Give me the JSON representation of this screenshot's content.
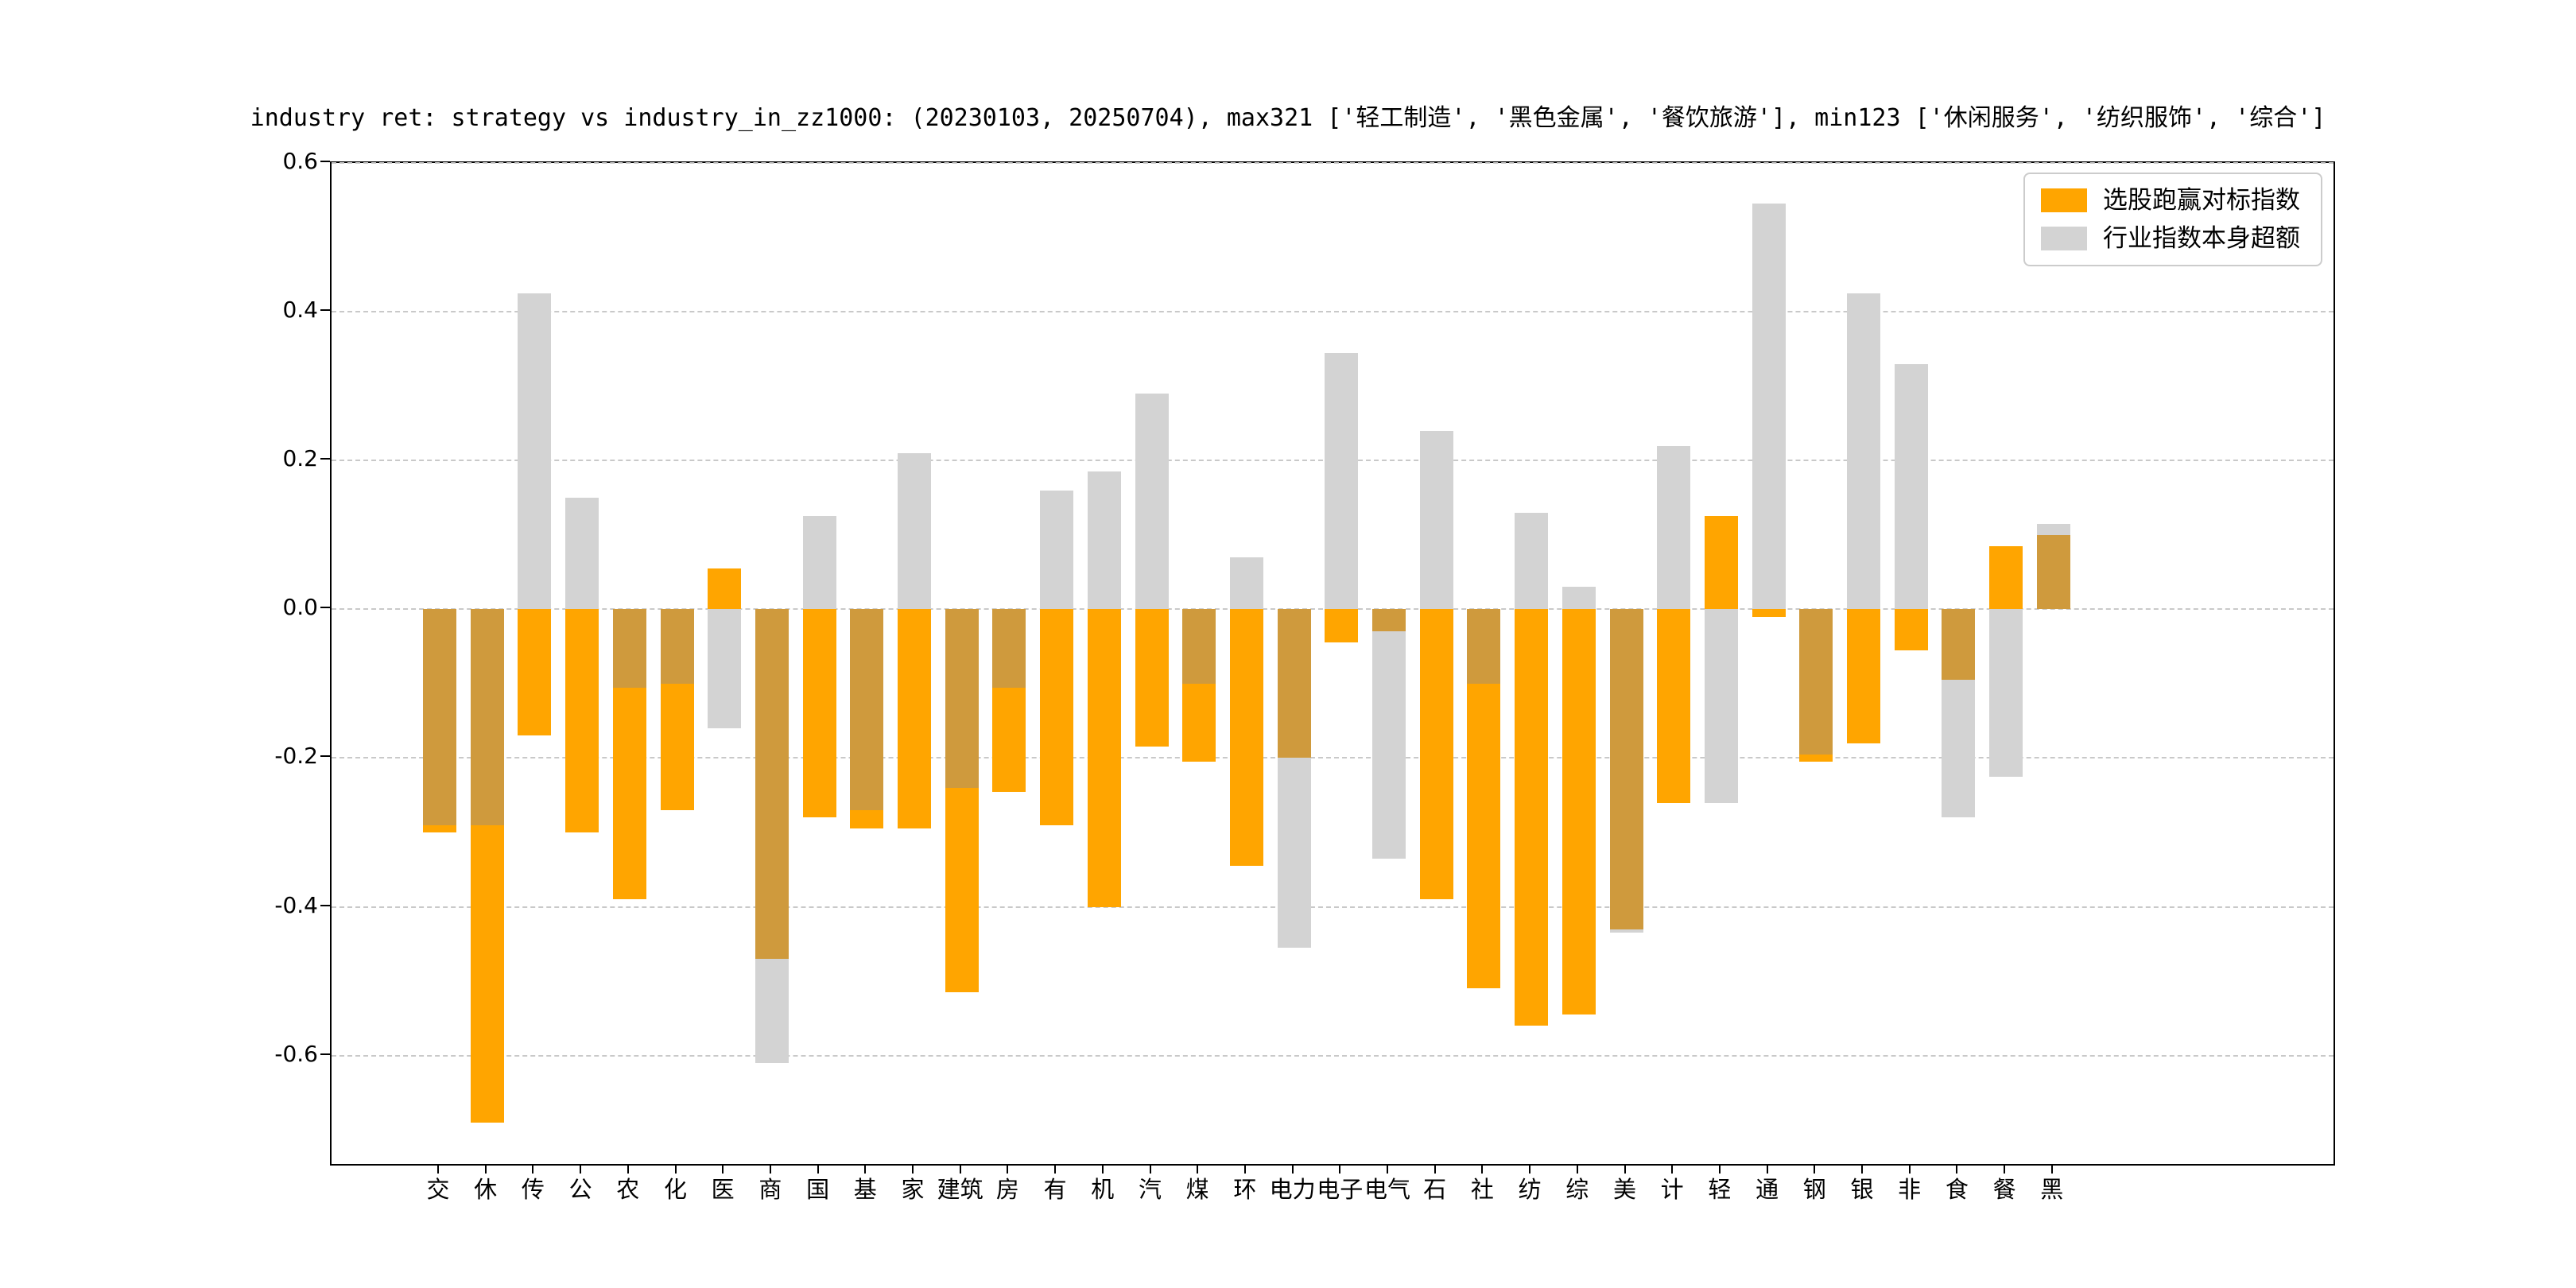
{
  "title": "industry ret: strategy vs industry_in_zz1000: (20230103, 20250704), max321 ['轻工制造', '黑色金属', '餐饮旅游'], min123 ['休闲服务', '纺织服饰', '综合']",
  "legend": {
    "items": [
      {
        "label": "选股跑赢对标指数",
        "color": "#FFA500"
      },
      {
        "label": "行业指数本身超额",
        "color": "#D3D3D3"
      }
    ]
  },
  "chart_data": {
    "type": "bar",
    "title": "industry ret: strategy vs industry_in_zz1000: (20230103, 20250704), max321 ['轻工制造', '黑色金属', '餐饮旅游'], min123 ['休闲服务', '纺织服饰', '综合']",
    "categories": [
      "交",
      "休",
      "传",
      "公",
      "农",
      "化",
      "医",
      "商",
      "国",
      "基",
      "家",
      "建筑",
      "房",
      "有",
      "机",
      "汽",
      "煤",
      "环",
      "电力",
      "电子",
      "电气",
      "石",
      "社",
      "纺",
      "综",
      "美",
      "计",
      "轻",
      "通",
      "钢",
      "银",
      "非",
      "食",
      "餐",
      "黑"
    ],
    "series": [
      {
        "name": "选股跑赢对标指数",
        "color": "#FFA500",
        "values": [
          -0.3,
          -0.69,
          -0.17,
          -0.3,
          -0.39,
          -0.27,
          0.055,
          -0.47,
          -0.28,
          -0.295,
          -0.295,
          -0.515,
          -0.245,
          -0.29,
          -0.4,
          -0.185,
          -0.205,
          -0.345,
          -0.2,
          -0.045,
          -0.03,
          -0.39,
          -0.51,
          -0.56,
          -0.545,
          -0.43,
          -0.26,
          0.125,
          -0.01,
          -0.205,
          -0.18,
          -0.055,
          -0.095,
          0.085,
          0.1
        ]
      },
      {
        "name": "行业指数本身超额",
        "color": "#D3D3D3",
        "values": [
          -0.29,
          -0.29,
          0.425,
          0.15,
          -0.105,
          -0.1,
          -0.16,
          -0.61,
          0.125,
          -0.27,
          0.21,
          -0.24,
          -0.105,
          0.16,
          0.185,
          0.29,
          -0.1,
          0.07,
          -0.455,
          0.345,
          -0.335,
          0.24,
          -0.1,
          0.13,
          0.03,
          -0.435,
          0.22,
          -0.26,
          0.545,
          -0.195,
          0.425,
          0.33,
          -0.28,
          -0.225,
          0.115
        ]
      }
    ],
    "overlap_color": "#CF9A3D",
    "xlabel": "",
    "ylabel": "",
    "ylim": [
      -0.75,
      0.6
    ],
    "yticks": [
      0.6,
      0.4,
      0.2,
      0.0,
      -0.2,
      -0.4,
      -0.6
    ],
    "yticklabels": [
      "0.6",
      "0.4",
      "0.2",
      "0.0",
      "-0.2",
      "-0.4",
      "-0.6"
    ],
    "grid": "horizontal-dashed",
    "legend_position": "upper right"
  }
}
